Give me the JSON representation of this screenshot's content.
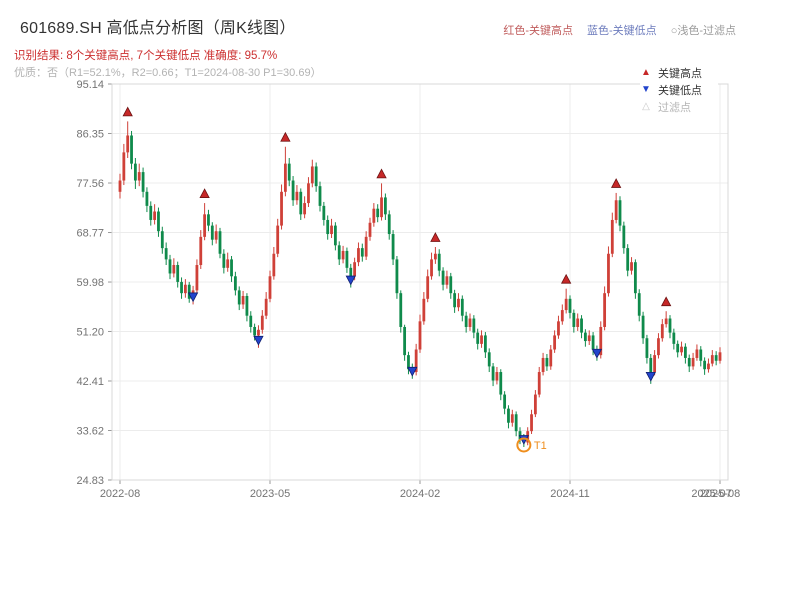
{
  "header": {
    "title": "601689.SH 高低点分析图（周K线图）",
    "legend_top": {
      "high_label": "红色-关键高点",
      "low_label": "蓝色-关键低点",
      "filter_label": "○浅色-过滤点"
    },
    "result_line": "识别结果: 8个关键高点, 7个关键低点  准确度: 95.7%",
    "quality_line": "优质：否（R1=52.1%，R2=0.66；T1=2024-08-30 P1=30.69）"
  },
  "legend_box": {
    "high": {
      "label": "关键高点",
      "color": "#c62828"
    },
    "low": {
      "label": "关键低点",
      "color": "#2244cc"
    },
    "filter": {
      "label": "过滤点",
      "color": "#c9c9c9"
    }
  },
  "chart_data": {
    "type": "candlestick",
    "title": "601689.SH 高低点分析图（周K线图）",
    "interval": "weekly",
    "ylim": [
      24.83,
      95.14
    ],
    "ytick_labels": [
      "95.14",
      "86.35",
      "77.56",
      "68.77",
      "59.98",
      "51.20",
      "42.41",
      "33.62",
      "24.83"
    ],
    "xticks": [
      {
        "week": 0,
        "label": "2022-08"
      },
      {
        "week": 39,
        "label": "2023-05"
      },
      {
        "week": 78,
        "label": "2024-02"
      },
      {
        "week": 117,
        "label": "2024-11"
      },
      {
        "week": 156,
        "label": "2025-08"
      }
    ],
    "extra_xtick": {
      "week": 153.8,
      "label": "2025-07"
    },
    "up_color": "#cf4038",
    "down_color": "#0f8a4b",
    "grid_color": "#ececec",
    "border_color": "#d8d8d8",
    "candles": [
      [
        76,
        79.2,
        74.8,
        78
      ],
      [
        78,
        84.5,
        77.2,
        83
      ],
      [
        83,
        88.5,
        82,
        86
      ],
      [
        86,
        86.8,
        80,
        81
      ],
      [
        81,
        82,
        76.5,
        78
      ],
      [
        78,
        81,
        77,
        79.5
      ],
      [
        79.5,
        80.3,
        75,
        76
      ],
      [
        76,
        76.8,
        72.4,
        73.5
      ],
      [
        73.5,
        74.3,
        70,
        71
      ],
      [
        71,
        73.8,
        70.2,
        72.5
      ],
      [
        72.5,
        73.2,
        68,
        69
      ],
      [
        69,
        69.8,
        65,
        66
      ],
      [
        66,
        67,
        63,
        64
      ],
      [
        64,
        64.8,
        60.5,
        61.5
      ],
      [
        61.5,
        64.2,
        60.8,
        63
      ],
      [
        63,
        63.6,
        59,
        60
      ],
      [
        60,
        60.8,
        57,
        58
      ],
      [
        58,
        60.5,
        57.2,
        59.5
      ],
      [
        59.5,
        60,
        56.3,
        57
      ],
      [
        57,
        59.3,
        56,
        58.5
      ],
      [
        58.5,
        64,
        58,
        63
      ],
      [
        63,
        69.2,
        62.3,
        68
      ],
      [
        68,
        74,
        67.4,
        72
      ],
      [
        72,
        72.8,
        69,
        70
      ],
      [
        70,
        70.6,
        66.5,
        67.5
      ],
      [
        67.5,
        70.2,
        66.8,
        69
      ],
      [
        69,
        69.6,
        64.2,
        65
      ],
      [
        65,
        65.8,
        61.5,
        62.5
      ],
      [
        62.5,
        65.2,
        61.8,
        64
      ],
      [
        64,
        64.6,
        60,
        61
      ],
      [
        61,
        61.8,
        57.6,
        58.5
      ],
      [
        58.5,
        59.2,
        55,
        56
      ],
      [
        56,
        58.4,
        55.2,
        57.5
      ],
      [
        57.5,
        58,
        53,
        54
      ],
      [
        54,
        54.8,
        51,
        52
      ],
      [
        52,
        52.6,
        49.6,
        50.5
      ],
      [
        50.5,
        52.3,
        48.3,
        51.5
      ],
      [
        51.5,
        55,
        50.8,
        54
      ],
      [
        54,
        58.2,
        53.4,
        57
      ],
      [
        57,
        62,
        56.4,
        61
      ],
      [
        61,
        66.2,
        60.4,
        65
      ],
      [
        65,
        71.2,
        64.4,
        70
      ],
      [
        70,
        77.3,
        69.3,
        76
      ],
      [
        76,
        84,
        75.2,
        81
      ],
      [
        81,
        82,
        77,
        78
      ],
      [
        78,
        78.8,
        73.5,
        74.5
      ],
      [
        74.5,
        77.2,
        73.7,
        76
      ],
      [
        76,
        76.6,
        71,
        72
      ],
      [
        72,
        75.2,
        71.3,
        74
      ],
      [
        74,
        78.6,
        73.3,
        77.5
      ],
      [
        77.5,
        81.7,
        76.8,
        80.5
      ],
      [
        80.5,
        81.2,
        76,
        77
      ],
      [
        77,
        77.8,
        72.5,
        73.5
      ],
      [
        73.5,
        74.2,
        70,
        71
      ],
      [
        71,
        71.8,
        67.5,
        68.5
      ],
      [
        68.5,
        71.2,
        67.8,
        70
      ],
      [
        70,
        70.6,
        65.6,
        66.5
      ],
      [
        66.5,
        67.2,
        63,
        64
      ],
      [
        64,
        66.4,
        63.3,
        65.5
      ],
      [
        65.5,
        66.1,
        61.6,
        62.5
      ],
      [
        62.5,
        63.2,
        59,
        61
      ],
      [
        61,
        64.3,
        60.3,
        63.5
      ],
      [
        63.5,
        67,
        62.8,
        66
      ],
      [
        66,
        66.8,
        63.6,
        64.5
      ],
      [
        64.5,
        69,
        63.9,
        68
      ],
      [
        68,
        71.4,
        67.3,
        70.5
      ],
      [
        70.5,
        74,
        69.8,
        73
      ],
      [
        73,
        73.8,
        70.6,
        71.5
      ],
      [
        71.5,
        77.5,
        70.9,
        75
      ],
      [
        75,
        75.7,
        71,
        72
      ],
      [
        72,
        72.7,
        67.5,
        68.5
      ],
      [
        68.5,
        69.2,
        63,
        64
      ],
      [
        64,
        64.6,
        57,
        58
      ],
      [
        58,
        58.5,
        51,
        52
      ],
      [
        52,
        52.4,
        46,
        47
      ],
      [
        47,
        47.6,
        43.6,
        44.5
      ],
      [
        44.5,
        45.5,
        42.8,
        44
      ],
      [
        44,
        49,
        43.4,
        48
      ],
      [
        48,
        54.2,
        47.4,
        53
      ],
      [
        53,
        58.2,
        52.4,
        57
      ],
      [
        57,
        62.2,
        56.4,
        61
      ],
      [
        61,
        65.2,
        60.4,
        64
      ],
      [
        64,
        66.2,
        63.2,
        65
      ],
      [
        65,
        65.8,
        61,
        62
      ],
      [
        62,
        62.6,
        58.5,
        59.5
      ],
      [
        59.5,
        62,
        58.8,
        61
      ],
      [
        61,
        61.6,
        57,
        58
      ],
      [
        58,
        58.6,
        54.5,
        55.5
      ],
      [
        55.5,
        58,
        54.8,
        57
      ],
      [
        57,
        57.6,
        53,
        54
      ],
      [
        54,
        54.7,
        51,
        52
      ],
      [
        52,
        54.4,
        51.3,
        53.5
      ],
      [
        53.5,
        54.1,
        50,
        51
      ],
      [
        51,
        51.7,
        48,
        49
      ],
      [
        49,
        51.4,
        48.3,
        50.5
      ],
      [
        50.5,
        51.1,
        46.5,
        47.5
      ],
      [
        47.5,
        48.2,
        44,
        45
      ],
      [
        45,
        45.6,
        41.5,
        42.5
      ],
      [
        42.5,
        44.9,
        41.8,
        44
      ],
      [
        44,
        44.5,
        39,
        40
      ],
      [
        40,
        40.6,
        36.5,
        37.5
      ],
      [
        37.5,
        38.1,
        34,
        35
      ],
      [
        35,
        37.3,
        34.3,
        36.5
      ],
      [
        36.5,
        37,
        32.6,
        33.5
      ],
      [
        33.5,
        34.2,
        31.2,
        32
      ],
      [
        32,
        33,
        30.69,
        31.5
      ],
      [
        31.5,
        34.2,
        31,
        33.5
      ],
      [
        33.5,
        37.3,
        33,
        36.5
      ],
      [
        36.5,
        40.8,
        36,
        40
      ],
      [
        40,
        44.9,
        39.5,
        44
      ],
      [
        44,
        47.4,
        43.4,
        46.5
      ],
      [
        46.5,
        47.2,
        44.2,
        45
      ],
      [
        45,
        48.8,
        44.4,
        48
      ],
      [
        48,
        51.4,
        47.4,
        50.5
      ],
      [
        50.5,
        54,
        49.9,
        53
      ],
      [
        53,
        56,
        52.4,
        55
      ],
      [
        55,
        58.8,
        54.4,
        57
      ],
      [
        57,
        57.6,
        53.5,
        54.5
      ],
      [
        54.5,
        55.1,
        51,
        52
      ],
      [
        52,
        54.4,
        51.3,
        53.5
      ],
      [
        53.5,
        54.1,
        50,
        51
      ],
      [
        51,
        51.6,
        48.5,
        49.5
      ],
      [
        49.5,
        51.4,
        48.8,
        50.5
      ],
      [
        50.5,
        51.1,
        47,
        48
      ],
      [
        48,
        48.7,
        46,
        47
      ],
      [
        47,
        53,
        46.4,
        52
      ],
      [
        52,
        59.2,
        51.4,
        58
      ],
      [
        58,
        66.3,
        57.4,
        65
      ],
      [
        65,
        72.3,
        64.4,
        71
      ],
      [
        71,
        75.8,
        70.4,
        74.5
      ],
      [
        74.5,
        75.2,
        69,
        70
      ],
      [
        70,
        70.7,
        65,
        66
      ],
      [
        66,
        66.7,
        61,
        62
      ],
      [
        62,
        64.4,
        61.3,
        63.5
      ],
      [
        63.5,
        64,
        57,
        58
      ],
      [
        58,
        58.7,
        53,
        54
      ],
      [
        54,
        54.7,
        49,
        50
      ],
      [
        50,
        50.6,
        45.5,
        46.5
      ],
      [
        46.5,
        47.2,
        41.9,
        44
      ],
      [
        44,
        47.9,
        43.4,
        47
      ],
      [
        47,
        50.9,
        46.4,
        50
      ],
      [
        50,
        53.4,
        49.4,
        52.5
      ],
      [
        52.5,
        54.8,
        51.9,
        53.5
      ],
      [
        53.5,
        54.1,
        50,
        51
      ],
      [
        51,
        51.7,
        48,
        49
      ],
      [
        49,
        49.6,
        46.6,
        47.5
      ],
      [
        47.5,
        49.4,
        46.9,
        48.5
      ],
      [
        48.5,
        49.1,
        45.5,
        46.5
      ],
      [
        46.5,
        47.1,
        44,
        45
      ],
      [
        45,
        47.4,
        44.4,
        46.5
      ],
      [
        46.5,
        48.9,
        46,
        48
      ],
      [
        48,
        48.6,
        45,
        46
      ],
      [
        46,
        46.6,
        43.5,
        44.5
      ],
      [
        44.5,
        46.4,
        43.9,
        45.5
      ],
      [
        45.5,
        47.9,
        45,
        47
      ],
      [
        47,
        47.7,
        45.2,
        46
      ],
      [
        46,
        48.4,
        45.5,
        47.5
      ]
    ],
    "key_highs": [
      {
        "index": 2,
        "price": 88.5
      },
      {
        "index": 22,
        "price": 74.0
      },
      {
        "index": 43,
        "price": 84.0
      },
      {
        "index": 68,
        "price": 77.5
      },
      {
        "index": 82,
        "price": 66.2
      },
      {
        "index": 116,
        "price": 58.8
      },
      {
        "index": 129,
        "price": 75.8
      },
      {
        "index": 142,
        "price": 54.8
      }
    ],
    "key_lows": [
      {
        "index": 19,
        "price": 56.0
      },
      {
        "index": 36,
        "price": 48.3
      },
      {
        "index": 60,
        "price": 59.0
      },
      {
        "index": 76,
        "price": 42.8
      },
      {
        "index": 105,
        "price": 30.69
      },
      {
        "index": 124,
        "price": 46.0
      },
      {
        "index": 138,
        "price": 41.9
      }
    ],
    "t1_marker": {
      "index": 105,
      "price": 30.69,
      "label": "T1",
      "color": "#ef8e1d"
    },
    "marker_colors": {
      "high_fill": "#c62828",
      "high_stroke": "#6d1212",
      "low_fill": "#2244cc",
      "low_stroke": "#101f6e"
    }
  }
}
